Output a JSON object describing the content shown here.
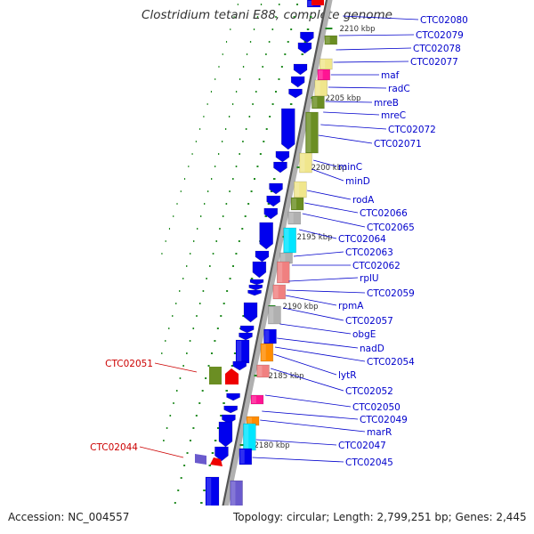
{
  "header": {
    "title": "Clostridium tetani E88, complete genome"
  },
  "footer": {
    "accession_label": "Accession:",
    "accession": "NC_004557",
    "topology_label": "Topology:",
    "topology": "circular",
    "length_label": "Length:",
    "length": "2,799,251 bp",
    "genes_label": "Genes:",
    "genes": "2,445"
  },
  "backbone_ticks": [
    "2210 kbp",
    "2205 kbp",
    "2200 kbp",
    "2195 kbp",
    "2190 kbp",
    "2185 kbp",
    "2180 kbp"
  ],
  "gene_labels": [
    "CTC02080",
    "CTC02079",
    "CTC02078",
    "CTC02077",
    "maf",
    "radC",
    "mreB",
    "mreC",
    "CTC02072",
    "CTC02071",
    "minC",
    "minD",
    "rodA",
    "CTC02066",
    "CTC02065",
    "CTC02064",
    "CTC02063",
    "CTC02062",
    "rplU",
    "CTC02059",
    "rpmA",
    "CTC02057",
    "obgE",
    "nadD",
    "CTC02054",
    "lytR",
    "CTC02052",
    "CTC02050",
    "CTC02049",
    "marR",
    "CTC02047",
    "CTC02045"
  ],
  "outer_labels": [
    "CTC02051",
    "CTC02044"
  ],
  "colors": {
    "blue": "#0000ee",
    "olive": "#6b8e23",
    "khaki": "#f0e68c",
    "pink": "#ff1493",
    "cyan": "#00e5ff",
    "salmon": "#f08080",
    "orange": "#ff8c00",
    "gray": "#b0b0b0",
    "slate": "#6a5acd",
    "red": "#ee0000",
    "label_blue": "#0000cc",
    "label_red": "#cc0000",
    "tick_green": "#228b22"
  }
}
